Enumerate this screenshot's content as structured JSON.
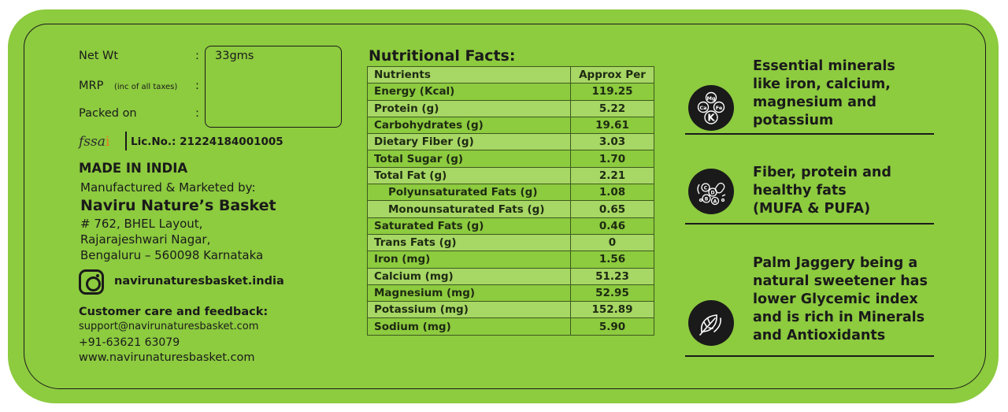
{
  "label": {
    "net_wt_label": "Net Wt",
    "net_wt_value": "33gms",
    "mrp_label": "MRP",
    "mrp_note": "(inc of all taxes)",
    "packed_on_label": "Packed on",
    "colon": ":",
    "fssai_logo": "fssai",
    "license": "Lic.No.: 21224184001005",
    "made_in": "MADE IN INDIA",
    "manufactured_by": "Manufactured & Marketed by:",
    "brand_name": "Naviru Nature’s Basket",
    "address": [
      "# 762, BHEL Layout,",
      "Rajarajeshwari Nagar,",
      "Bengaluru – 560098 Karnataka"
    ],
    "instagram_handle": "navirunaturesbasket.india",
    "care_title": "Customer care and feedback:",
    "email": "support@navirunaturesbasket.com",
    "phone": "+91-63621 63079",
    "website": "www.navirunaturesbasket.com"
  },
  "nutrition": {
    "title": "Nutritional Facts:",
    "header": {
      "nutrient": "Nutrients",
      "value": "Approx Per"
    },
    "rows": [
      {
        "name": "Energy (Kcal)",
        "value": "119.25",
        "indent": false
      },
      {
        "name": "Protein (g)",
        "value": "5.22",
        "indent": false
      },
      {
        "name": "Carbohydrates (g)",
        "value": "19.61",
        "indent": false
      },
      {
        "name": "Dietary Fiber (g)",
        "value": "3.03",
        "indent": false
      },
      {
        "name": "Total Sugar (g)",
        "value": "1.70",
        "indent": false
      },
      {
        "name": "Total Fat (g)",
        "value": "2.21",
        "indent": false
      },
      {
        "name": "Polyunsaturated Fats (g)",
        "value": "1.08",
        "indent": true
      },
      {
        "name": "Monounsaturated Fats (g)",
        "value": "0.65",
        "indent": true
      },
      {
        "name": "Saturated Fats (g)",
        "value": "0.46",
        "indent": false
      },
      {
        "name": "Trans Fats (g)",
        "value": "0",
        "indent": false
      },
      {
        "name": "Iron (mg)",
        "value": "1.56",
        "indent": false
      },
      {
        "name": "Calcium (mg)",
        "value": "51.23",
        "indent": false
      },
      {
        "name": "Magnesium (mg)",
        "value": "52.95",
        "indent": false
      },
      {
        "name": "Potassium (mg)",
        "value": "152.89",
        "indent": false
      },
      {
        "name": "Sodium (mg)",
        "value": "5.90",
        "indent": false
      }
    ]
  },
  "features": [
    {
      "icon": "minerals-icon",
      "icon_labels": [
        "Mg",
        "Ca",
        "Fe",
        "K"
      ],
      "lines": [
        "Essential minerals",
        "like iron, calcium,",
        "magnesium and",
        "potassium"
      ]
    },
    {
      "icon": "nutrients-icon",
      "icon_labels": [
        "C",
        "D",
        "B",
        "A"
      ],
      "lines": [
        "Fiber, protein and",
        "healthy fats",
        "(MUFA & PUFA)"
      ]
    },
    {
      "icon": "leaf-icon",
      "icon_labels": [],
      "lines": [
        "Palm Jaggery being a",
        "natural sweetener has",
        "lower Glycemic index",
        "and is rich in Minerals",
        "and Antioxidants"
      ]
    }
  ],
  "colors": {
    "background": "#8dcb3f",
    "alt_row": "#a7d764",
    "text": "#1a1a1a",
    "fssai_accent": "#e47b1c"
  }
}
